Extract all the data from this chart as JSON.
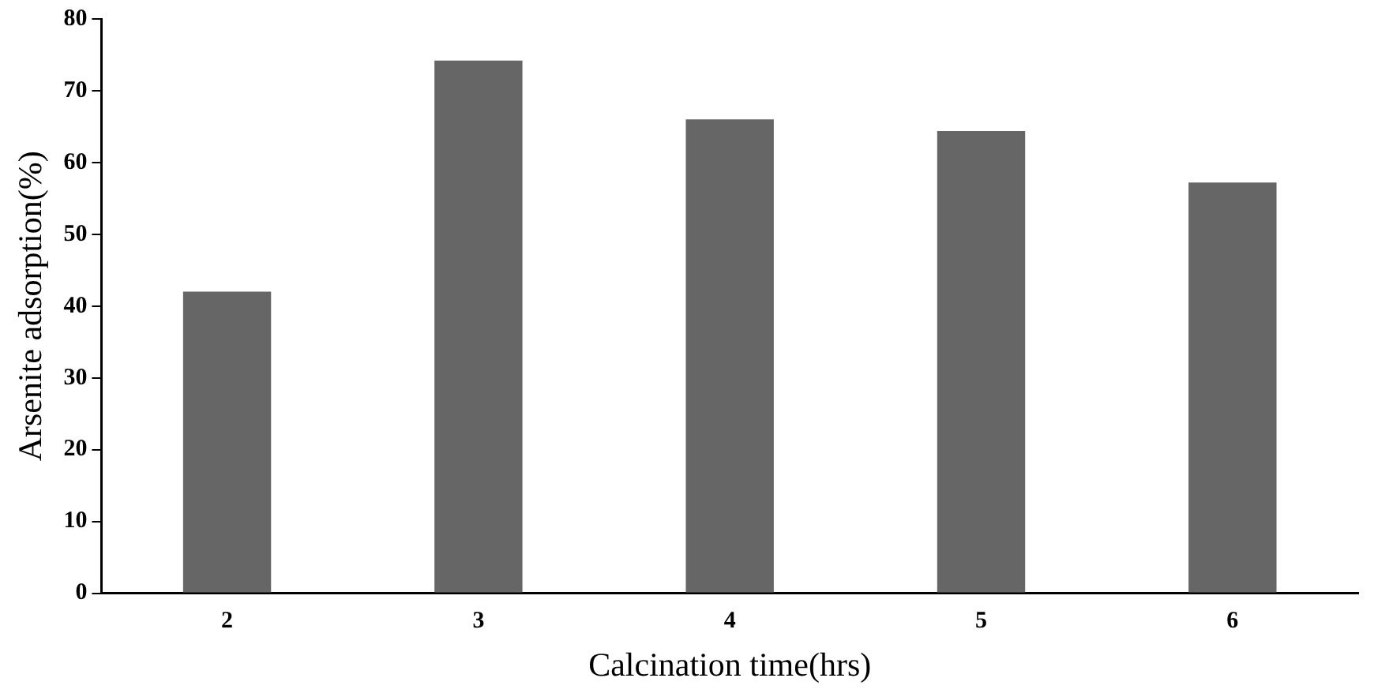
{
  "chart_data": {
    "type": "bar",
    "xlabel": "Calcination time(hrs)",
    "ylabel": "Arsenite adsorption(%)",
    "categories": [
      "2",
      "3",
      "4",
      "5",
      "6"
    ],
    "values": [
      42,
      74.2,
      66,
      64.4,
      57.2
    ],
    "color": "#666666",
    "ylim": [
      0,
      80
    ],
    "yticks": [
      0,
      10,
      20,
      30,
      40,
      50,
      60,
      70,
      80
    ],
    "grid": false,
    "legend": false
  }
}
